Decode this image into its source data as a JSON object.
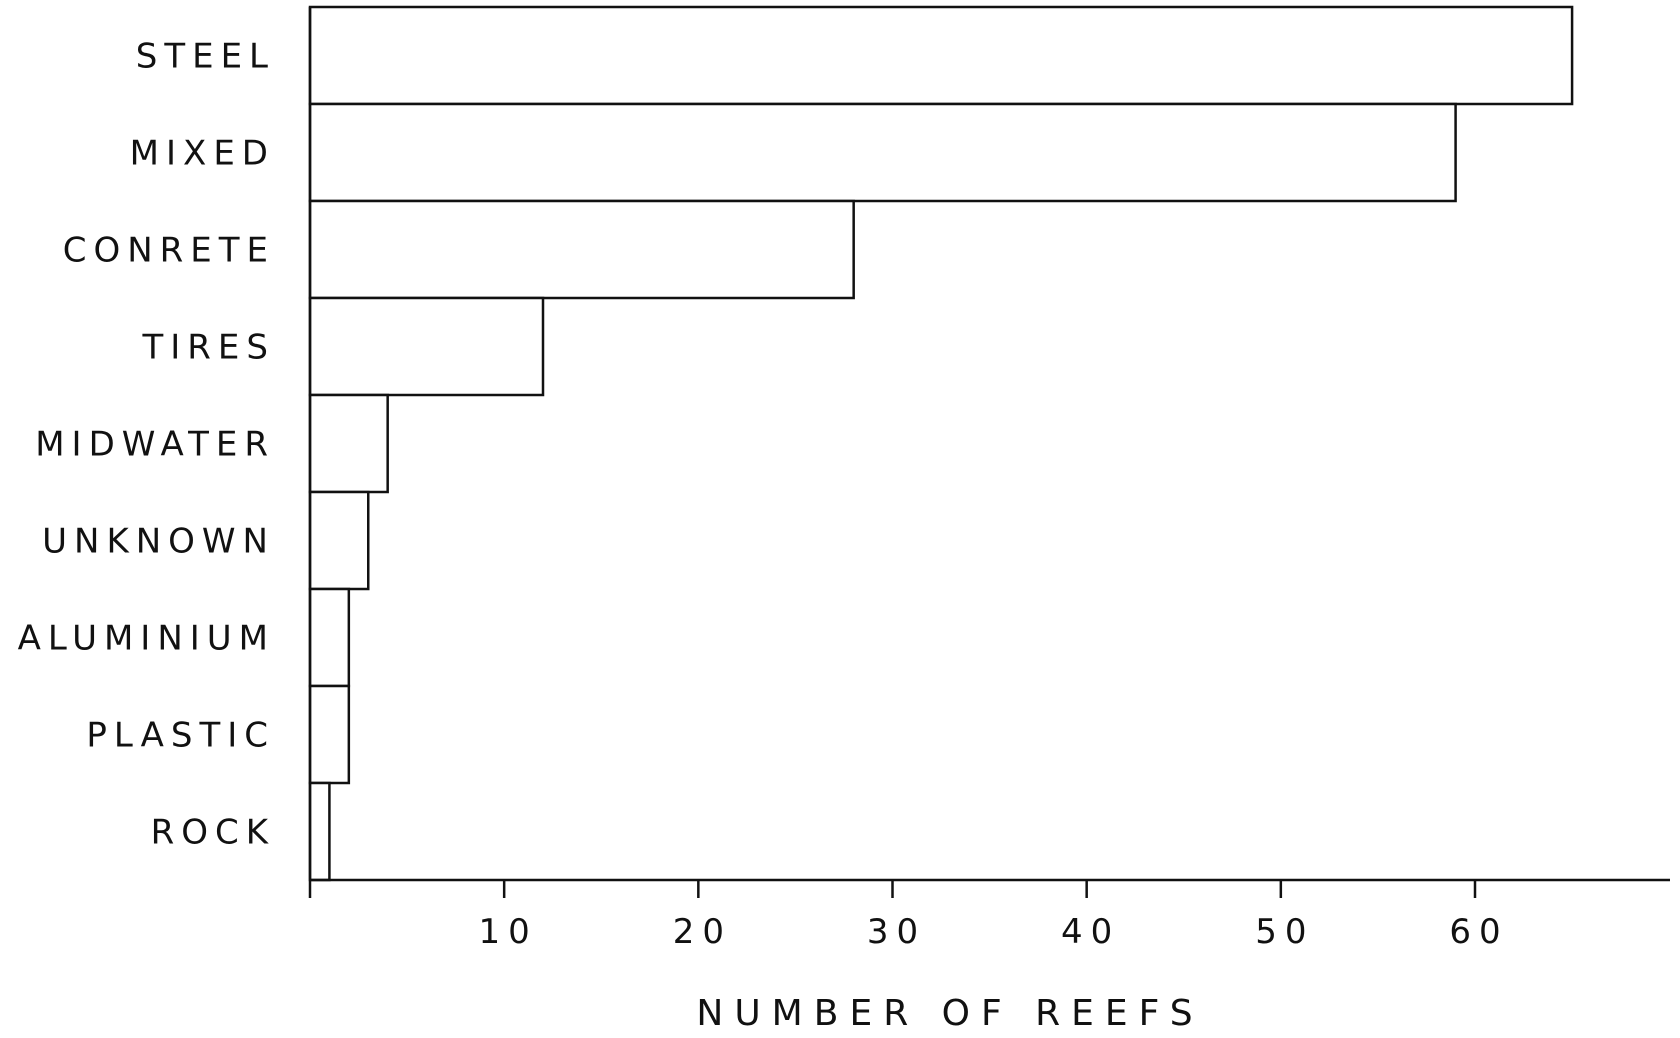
{
  "chart_data": {
    "type": "bar",
    "orientation": "horizontal",
    "categories": [
      "STEEL",
      "MIXED",
      "CONRETE",
      "TIRES",
      "MIDWATER",
      "UNKNOWN",
      "ALUMINIUM",
      "PLASTIC",
      "ROCK"
    ],
    "values": [
      65,
      59,
      28,
      12,
      4,
      3,
      2,
      2,
      1
    ],
    "title": "",
    "xlabel": "NUMBER OF REEFS",
    "ylabel": "",
    "xticks": [
      10,
      20,
      30,
      40,
      50,
      60
    ],
    "xlim": [
      0,
      70
    ],
    "grid": false,
    "legend": "none"
  }
}
